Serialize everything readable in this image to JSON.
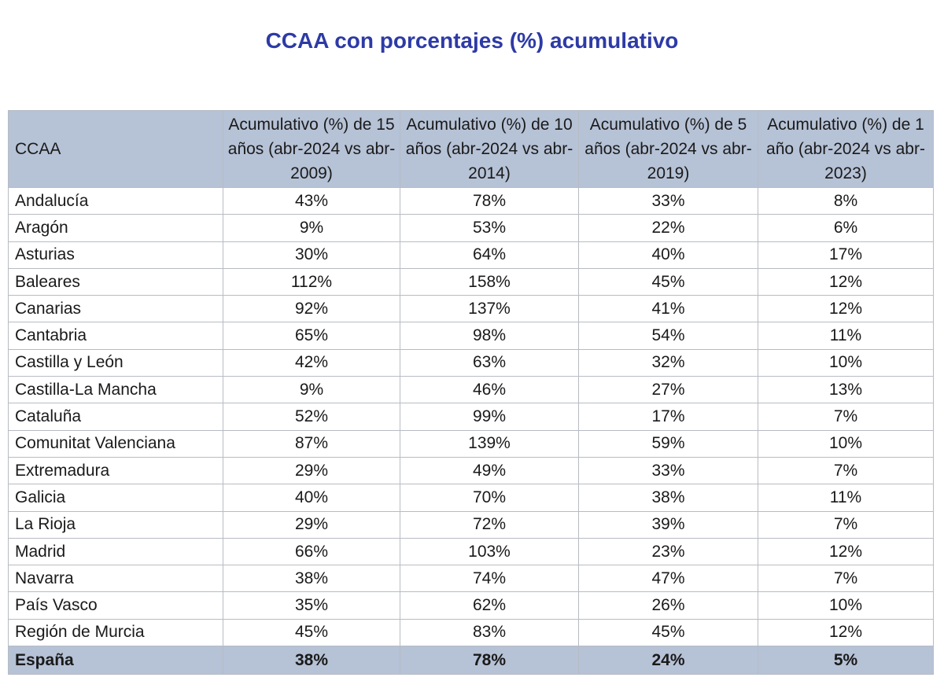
{
  "title": "CCAA con porcentajes (%) acumulativo",
  "colors": {
    "title": "#2d3aa6",
    "header_bg": "#b6c2d6"
  },
  "table": {
    "headers": [
      "CCAA",
      "Acumulativo (%) de 15 años (abr-2024 vs abr-2009)",
      "Acumulativo (%) de 10 años (abr-2024 vs abr-2014)",
      "Acumulativo (%) de 5 años (abr-2024 vs abr-2019)",
      "Acumulativo (%) de 1 año (abr-2024 vs abr-2023)"
    ],
    "rows": [
      [
        "Andalucía",
        "43%",
        "78%",
        "33%",
        "8%"
      ],
      [
        "Aragón",
        "9%",
        "53%",
        "22%",
        "6%"
      ],
      [
        "Asturias",
        "30%",
        "64%",
        "40%",
        "17%"
      ],
      [
        "Baleares",
        "112%",
        "158%",
        "45%",
        "12%"
      ],
      [
        "Canarias",
        "92%",
        "137%",
        "41%",
        "12%"
      ],
      [
        "Cantabria",
        "65%",
        "98%",
        "54%",
        "11%"
      ],
      [
        "Castilla y León",
        "42%",
        "63%",
        "32%",
        "10%"
      ],
      [
        "Castilla-La Mancha",
        "9%",
        "46%",
        "27%",
        "13%"
      ],
      [
        "Cataluña",
        "52%",
        "99%",
        "17%",
        "7%"
      ],
      [
        "Comunitat Valenciana",
        "87%",
        "139%",
        "59%",
        "10%"
      ],
      [
        "Extremadura",
        "29%",
        "49%",
        "33%",
        "7%"
      ],
      [
        "Galicia",
        "40%",
        "70%",
        "38%",
        "11%"
      ],
      [
        "La Rioja",
        "29%",
        "72%",
        "39%",
        "7%"
      ],
      [
        "Madrid",
        "66%",
        "103%",
        "23%",
        "12%"
      ],
      [
        "Navarra",
        "38%",
        "74%",
        "47%",
        "7%"
      ],
      [
        "País Vasco",
        "35%",
        "62%",
        "26%",
        "10%"
      ],
      [
        "Región de Murcia",
        "45%",
        "83%",
        "45%",
        "12%"
      ]
    ],
    "total": [
      "España",
      "38%",
      "78%",
      "24%",
      "5%"
    ]
  }
}
